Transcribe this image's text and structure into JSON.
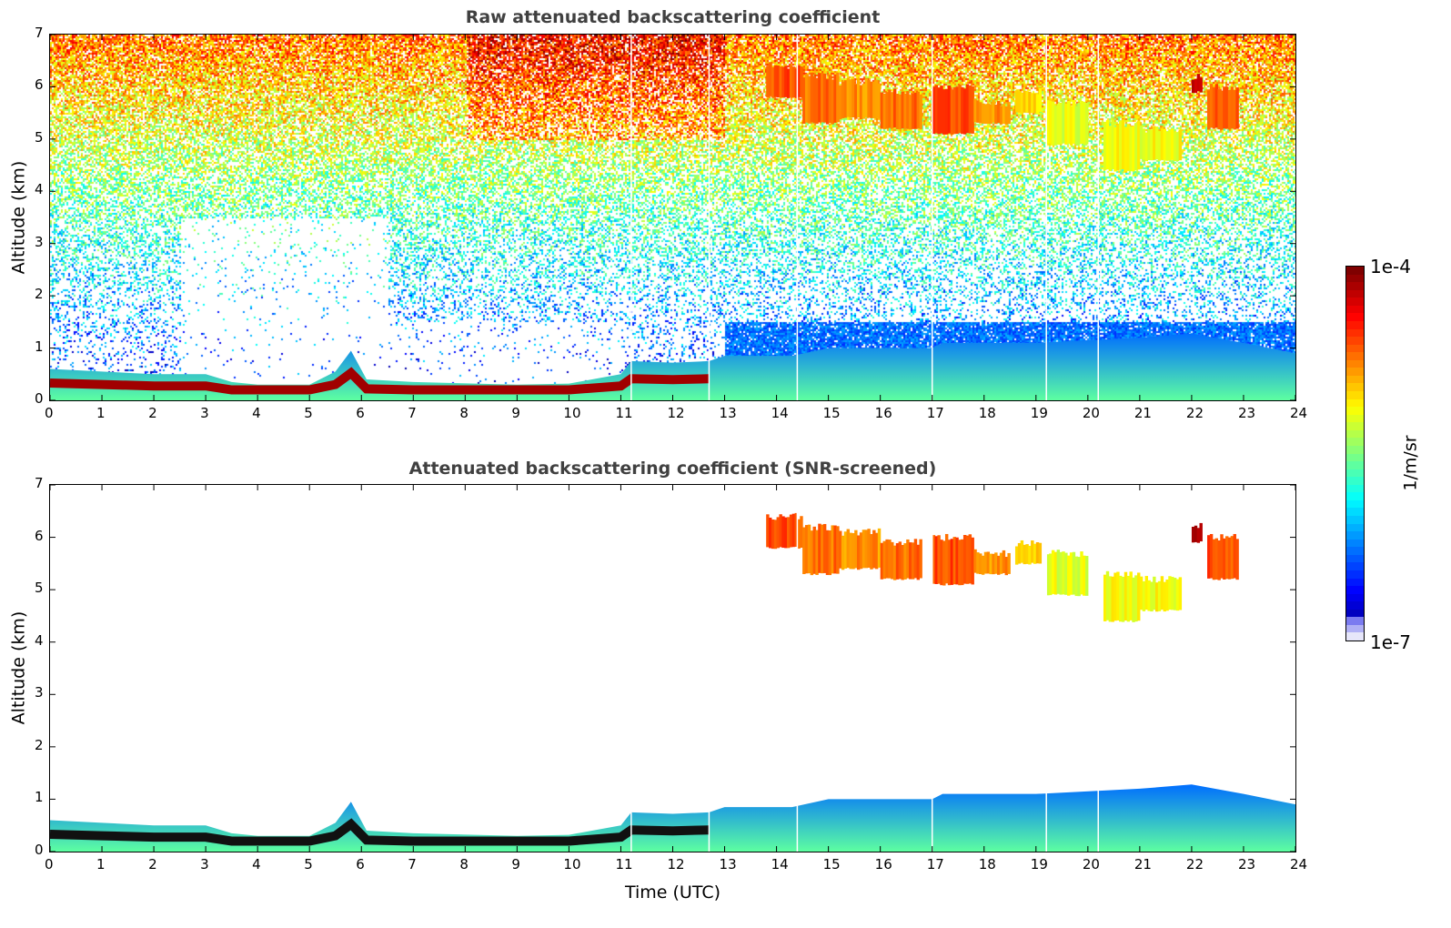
{
  "chart_data": {
    "type": "heatmap",
    "xlabel": "Time (UTC)",
    "ylabel": "Altitude (km)",
    "xlim": [
      0,
      24
    ],
    "ylim": [
      0,
      7
    ],
    "xticks": [
      0,
      1,
      2,
      3,
      4,
      5,
      6,
      7,
      8,
      9,
      10,
      11,
      12,
      13,
      14,
      15,
      16,
      17,
      18,
      19,
      20,
      21,
      22,
      23,
      24
    ],
    "yticks": [
      0,
      1,
      2,
      3,
      4,
      5,
      6,
      7
    ],
    "colorbar": {
      "min_label": "1e-7",
      "max_label": "1e-4",
      "log10_min": -7,
      "log10_max": -4,
      "unit": "1/m/sr",
      "colormap": "jet"
    },
    "panels": [
      {
        "title": "Raw attenuated backscattering coefficient",
        "screened": false
      },
      {
        "title": "Attenuated backscattering coefficient (SNR-screened)",
        "screened": true
      }
    ],
    "boundary_layer_top_km": [
      [
        0,
        0.6
      ],
      [
        1,
        0.55
      ],
      [
        2,
        0.5
      ],
      [
        3,
        0.5
      ],
      [
        3.5,
        0.35
      ],
      [
        4,
        0.3
      ],
      [
        5,
        0.3
      ],
      [
        5.5,
        0.55
      ],
      [
        5.8,
        0.95
      ],
      [
        6.1,
        0.4
      ],
      [
        7,
        0.35
      ],
      [
        9,
        0.3
      ],
      [
        10,
        0.32
      ],
      [
        11,
        0.5
      ],
      [
        11.2,
        0.75
      ],
      [
        12,
        0.72
      ],
      [
        12.7,
        0.75
      ],
      [
        13,
        0.85
      ],
      [
        14.3,
        0.85
      ],
      [
        15,
        1.0
      ],
      [
        17,
        1.0
      ],
      [
        17.2,
        1.1
      ],
      [
        19,
        1.1
      ],
      [
        21,
        1.2
      ],
      [
        22,
        1.28
      ],
      [
        23,
        1.1
      ],
      [
        24,
        0.9
      ]
    ],
    "aerosol_layer_log10": -4.1,
    "boundary_fill_log10": -5.9,
    "clouds": [
      {
        "t0": 13.8,
        "t1": 14.5,
        "top_km": 6.4,
        "base_km": 5.8,
        "log10": -4.6
      },
      {
        "t0": 14.5,
        "t1": 15.2,
        "top_km": 6.2,
        "base_km": 5.3,
        "log10": -4.7
      },
      {
        "t0": 15.2,
        "t1": 16.0,
        "top_km": 6.1,
        "base_km": 5.4,
        "log10": -4.8
      },
      {
        "t0": 16.0,
        "t1": 16.8,
        "top_km": 5.9,
        "base_km": 5.2,
        "log10": -4.7
      },
      {
        "t0": 17.0,
        "t1": 17.8,
        "top_km": 6.0,
        "base_km": 5.1,
        "log10": -4.6
      },
      {
        "t0": 17.8,
        "t1": 18.5,
        "top_km": 5.7,
        "base_km": 5.3,
        "log10": -4.8
      },
      {
        "t0": 18.6,
        "t1": 19.1,
        "top_km": 5.9,
        "base_km": 5.5,
        "log10": -5.0
      },
      {
        "t0": 19.2,
        "t1": 20.0,
        "top_km": 5.7,
        "base_km": 4.9,
        "log10": -5.2
      },
      {
        "t0": 20.3,
        "t1": 21.0,
        "top_km": 5.3,
        "base_km": 4.4,
        "log10": -5.15
      },
      {
        "t0": 21.0,
        "t1": 21.8,
        "top_km": 5.2,
        "base_km": 4.6,
        "log10": -5.15
      },
      {
        "t0": 22.0,
        "t1": 22.2,
        "top_km": 6.2,
        "base_km": 5.9,
        "log10": -4.2
      },
      {
        "t0": 22.3,
        "t1": 22.9,
        "top_km": 6.0,
        "base_km": 5.2,
        "log10": -4.6
      }
    ],
    "data_gaps_utc": [
      11.2,
      12.7,
      14.4,
      17.0,
      19.2,
      20.2
    ]
  }
}
